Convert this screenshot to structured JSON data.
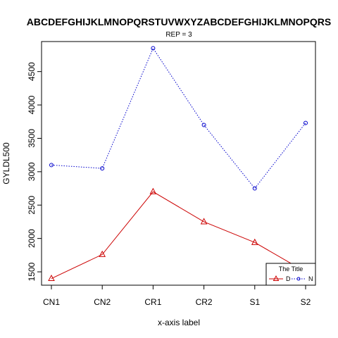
{
  "chart_data": {
    "type": "line",
    "title": "ABCDEFGHIJKLMNOPQRSTUVWXYZABCDEFGHIJKLMNOPQRS",
    "subtitle": "REP = 3",
    "xlabel": "x-axis label",
    "ylabel": "GYLDL500",
    "categories": [
      "CN1",
      "CN2",
      "CR1",
      "CR2",
      "S1",
      "S2"
    ],
    "yticks": [
      1500,
      2000,
      2500,
      3000,
      3500,
      4000,
      4500
    ],
    "ylim": [
      1300,
      4950
    ],
    "grid": false,
    "legend": {
      "title": "The Title",
      "placement": "bottom-right"
    },
    "series": [
      {
        "name": "D",
        "color": "#cc0000",
        "marker": "triangle",
        "line": "solid",
        "values": [
          1400,
          1760,
          2700,
          2250,
          1940,
          1500
        ]
      },
      {
        "name": "N",
        "color": "#0000cc",
        "marker": "circle",
        "line": "dotted",
        "values": [
          3100,
          3050,
          4850,
          3700,
          2750,
          3730
        ]
      }
    ]
  }
}
